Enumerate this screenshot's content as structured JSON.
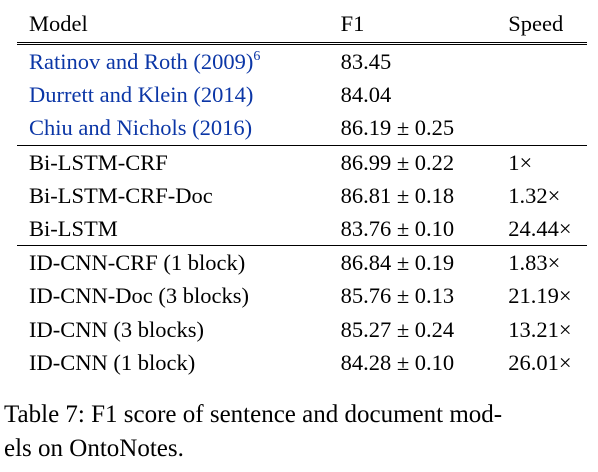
{
  "table": {
    "headers": [
      "Model",
      "F1",
      "Speed"
    ],
    "groups": [
      {
        "rows": [
          {
            "model": "Ratinov and Roth (2009)",
            "footnote": "6",
            "f1": "83.45",
            "speed": "",
            "cited": true
          },
          {
            "model": "Durrett and Klein (2014)",
            "footnote": "",
            "f1": "84.04",
            "speed": "",
            "cited": true
          },
          {
            "model": "Chiu and Nichols (2016)",
            "footnote": "",
            "f1": "86.19 ± 0.25",
            "speed": "",
            "cited": true
          }
        ]
      },
      {
        "rows": [
          {
            "model": "Bi-LSTM-CRF",
            "footnote": "",
            "f1": "86.99 ± 0.22",
            "speed": "1×",
            "cited": false
          },
          {
            "model": "Bi-LSTM-CRF-Doc",
            "footnote": "",
            "f1": "86.81 ± 0.18",
            "speed": "1.32×",
            "cited": false
          },
          {
            "model": "Bi-LSTM",
            "footnote": "",
            "f1": "83.76 ± 0.10",
            "speed": "24.44×",
            "cited": false
          }
        ]
      },
      {
        "rows": [
          {
            "model": "ID-CNN-CRF (1 block)",
            "footnote": "",
            "f1": "86.84 ± 0.19",
            "speed": "1.83×",
            "cited": false
          },
          {
            "model": "ID-CNN-Doc (3 blocks)",
            "footnote": "",
            "f1": "85.76 ± 0.13",
            "speed": "21.19×",
            "cited": false
          },
          {
            "model": "ID-CNN (3 blocks)",
            "footnote": "",
            "f1": "85.27 ± 0.24",
            "speed": "13.21×",
            "cited": false
          },
          {
            "model": "ID-CNN (1 block)",
            "footnote": "",
            "f1": "84.28 ± 0.10",
            "speed": "26.01×",
            "cited": false
          }
        ]
      }
    ]
  },
  "caption": {
    "line1": "Table 7: F1 score of sentence and document mod-",
    "line2": "els on OntoNotes."
  },
  "colors": {
    "citation_link": "#0b36a6",
    "text": "#000000"
  }
}
